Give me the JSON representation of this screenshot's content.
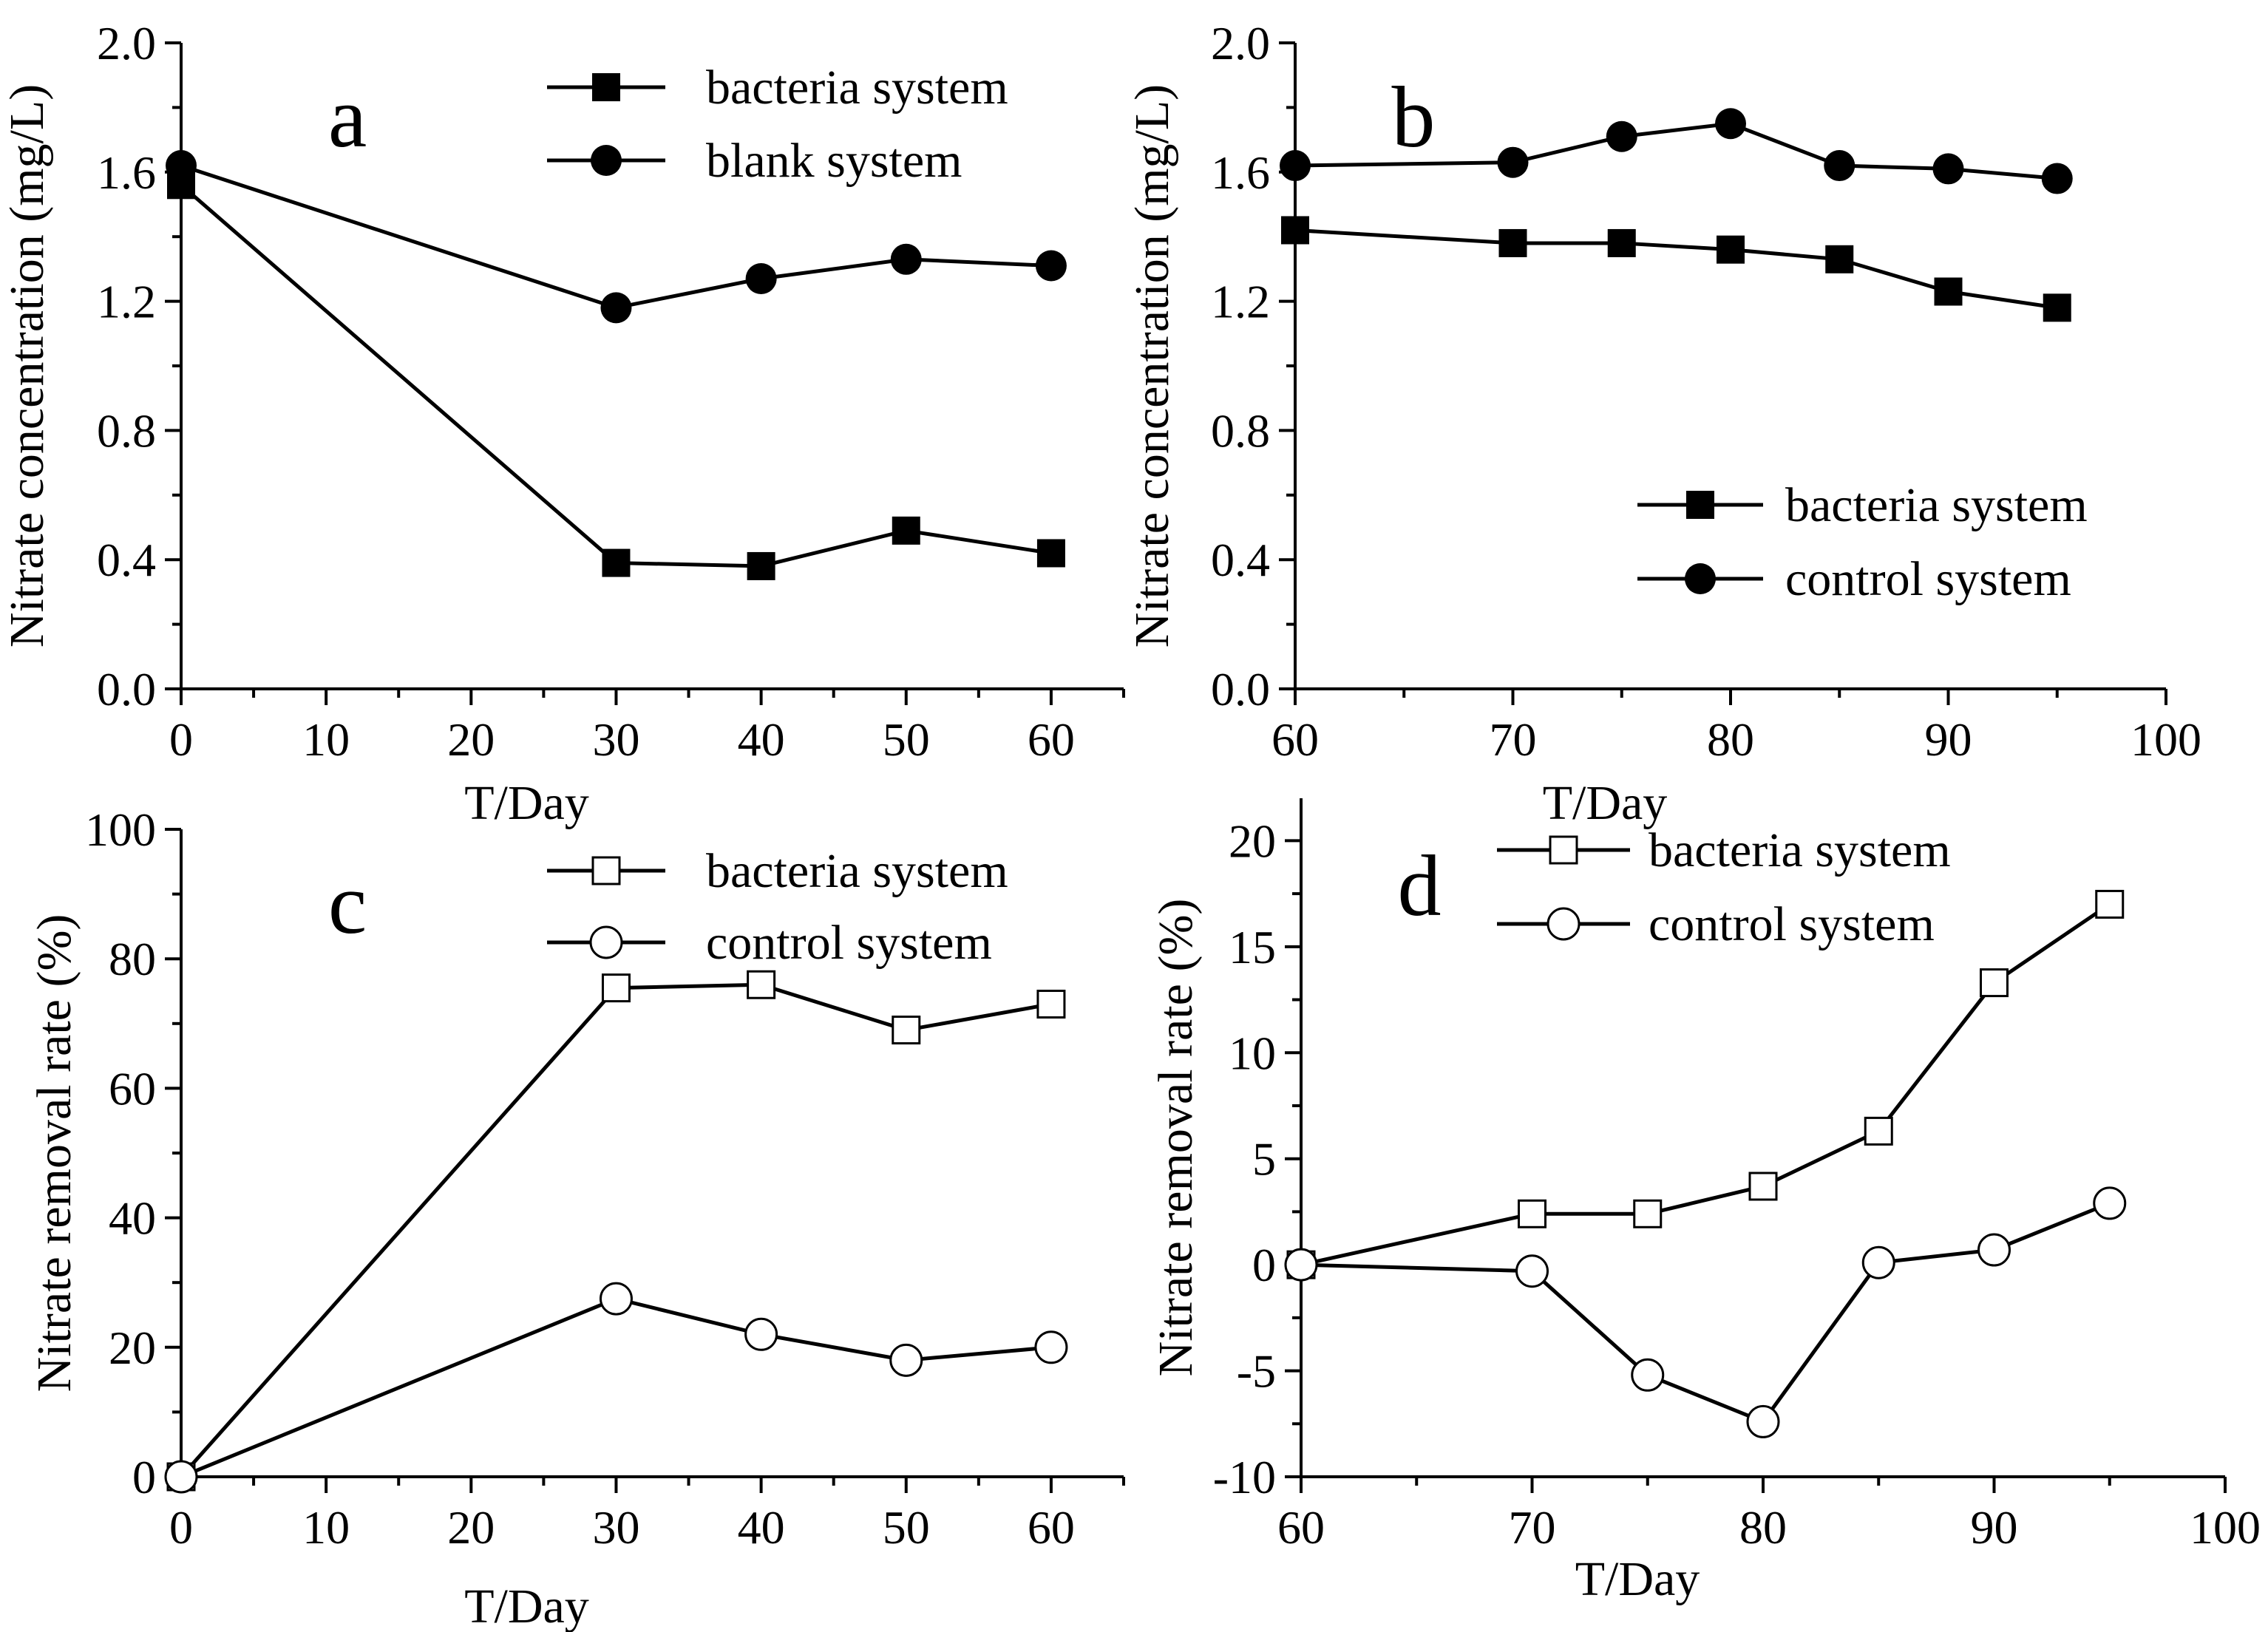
{
  "colors": {
    "ink": "#000000",
    "background": "#ffffff",
    "open_marker_fill": "#ffffff"
  },
  "chart_data": [
    {
      "id": "a",
      "panel_label": "a",
      "type": "line",
      "xlabel": "T/Day",
      "ylabel": "Nitrate concentration (mg/L)",
      "xlim": [
        0,
        65
      ],
      "ylim": [
        0,
        2.0
      ],
      "xticks": [
        0,
        10,
        20,
        30,
        40,
        50,
        60
      ],
      "yticks": [
        0.0,
        0.4,
        0.8,
        1.2,
        1.6,
        2.0
      ],
      "xtick_labels": [
        "0",
        "10",
        "20",
        "30",
        "40",
        "50",
        "60"
      ],
      "ytick_labels": [
        "0.0",
        "0.4",
        "0.8",
        "1.2",
        "1.6",
        "2.0"
      ],
      "legend_position": "top-right",
      "series": [
        {
          "name": "bacteria system",
          "marker": "filled-square",
          "x": [
            0,
            30,
            40,
            50,
            60
          ],
          "y": [
            1.56,
            0.39,
            0.38,
            0.49,
            0.42
          ]
        },
        {
          "name": "blank system",
          "marker": "filled-circle",
          "x": [
            0,
            30,
            40,
            50,
            60
          ],
          "y": [
            1.62,
            1.18,
            1.27,
            1.33,
            1.31
          ]
        }
      ]
    },
    {
      "id": "b",
      "panel_label": "b",
      "type": "line",
      "xlabel": "T/Day",
      "ylabel": "Nitrate concentration (mg/L)",
      "xlim": [
        60,
        100
      ],
      "ylim": [
        0,
        2.0
      ],
      "xticks": [
        60,
        70,
        80,
        90,
        100
      ],
      "yticks": [
        0.0,
        0.4,
        0.8,
        1.2,
        1.6,
        2.0
      ],
      "xtick_labels": [
        "60",
        "70",
        "80",
        "90",
        "100"
      ],
      "ytick_labels": [
        "0.0",
        "0.4",
        "0.8",
        "1.2",
        "1.6",
        "2.0"
      ],
      "legend_position": "bottom-right",
      "series": [
        {
          "name": "bacteria system",
          "marker": "filled-square",
          "x": [
            60,
            70,
            75,
            80,
            85,
            90,
            95
          ],
          "y": [
            1.42,
            1.38,
            1.38,
            1.36,
            1.33,
            1.23,
            1.18
          ]
        },
        {
          "name": "control system",
          "marker": "filled-circle",
          "x": [
            60,
            70,
            75,
            80,
            85,
            90,
            95
          ],
          "y": [
            1.62,
            1.63,
            1.71,
            1.75,
            1.62,
            1.61,
            1.58
          ]
        }
      ]
    },
    {
      "id": "c",
      "panel_label": "c",
      "type": "line",
      "xlabel": "T/Day",
      "ylabel": "Nitrate removal rate (%)",
      "xlim": [
        0,
        65
      ],
      "ylim": [
        0,
        100
      ],
      "xticks": [
        0,
        10,
        20,
        30,
        40,
        50,
        60
      ],
      "yticks": [
        0,
        20,
        40,
        60,
        80,
        100
      ],
      "xtick_labels": [
        "0",
        "10",
        "20",
        "30",
        "40",
        "50",
        "60"
      ],
      "ytick_labels": [
        "0",
        "20",
        "40",
        "60",
        "80",
        "100"
      ],
      "legend_position": "top-right",
      "series": [
        {
          "name": "bacteria system",
          "marker": "open-square",
          "x": [
            0,
            30,
            40,
            50,
            60
          ],
          "y": [
            0,
            75.5,
            76,
            69,
            73
          ]
        },
        {
          "name": "control system",
          "marker": "open-circle",
          "x": [
            0,
            30,
            40,
            50,
            60
          ],
          "y": [
            0,
            27.5,
            22,
            18,
            20
          ]
        }
      ]
    },
    {
      "id": "d",
      "panel_label": "d",
      "type": "line",
      "xlabel": "T/Day",
      "ylabel": "Nitrate removal rate (%)",
      "xlim": [
        60,
        100
      ],
      "ylim": [
        -10,
        22
      ],
      "xticks": [
        60,
        70,
        80,
        90,
        100
      ],
      "yticks": [
        -10,
        -5,
        0,
        5,
        10,
        15,
        20
      ],
      "xtick_labels": [
        "60",
        "70",
        "80",
        "90",
        "100"
      ],
      "ytick_labels": [
        "-10",
        "-5",
        "0",
        "5",
        "10",
        "15",
        "20"
      ],
      "legend_position": "top-left",
      "series": [
        {
          "name": "bacteria system",
          "marker": "open-square",
          "x": [
            60,
            70,
            75,
            80,
            85,
            90,
            95
          ],
          "y": [
            0,
            2.4,
            2.4,
            3.7,
            6.3,
            13.3,
            17
          ]
        },
        {
          "name": "control system",
          "marker": "open-circle",
          "x": [
            60,
            70,
            75,
            80,
            85,
            90,
            95
          ],
          "y": [
            0,
            -0.3,
            -5.2,
            -7.4,
            0.1,
            0.7,
            2.9
          ]
        }
      ]
    }
  ]
}
